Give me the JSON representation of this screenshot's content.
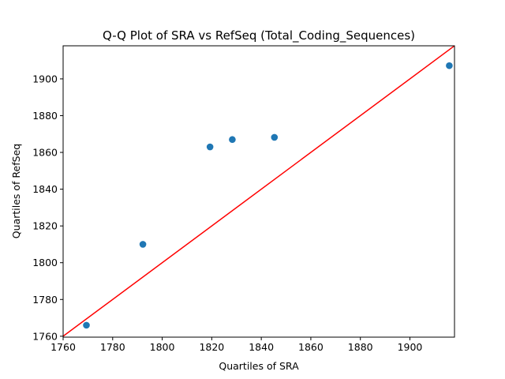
{
  "chart_data": {
    "type": "scatter",
    "title": "Q-Q Plot of SRA vs RefSeq (Total_Coding_Sequences)",
    "xlabel": "Quartiles of SRA",
    "ylabel": "Quartiles of RefSeq",
    "xlim": [
      1760,
      1918
    ],
    "ylim": [
      1759.5,
      1918
    ],
    "xticks": [
      1760,
      1780,
      1800,
      1820,
      1840,
      1860,
      1880,
      1900
    ],
    "yticks": [
      1760,
      1780,
      1800,
      1820,
      1840,
      1860,
      1880,
      1900
    ],
    "grid": false,
    "points": [
      {
        "x": 1769.4,
        "y": 1766.0
      },
      {
        "x": 1792.2,
        "y": 1810.0
      },
      {
        "x": 1819.3,
        "y": 1863.0
      },
      {
        "x": 1828.3,
        "y": 1867.0
      },
      {
        "x": 1845.3,
        "y": 1868.2
      },
      {
        "x": 1915.9,
        "y": 1907.2
      }
    ],
    "reference_line": {
      "from": [
        1759.5,
        1759.5
      ],
      "to": [
        1918,
        1918
      ]
    },
    "colors": {
      "points": "#1f77b4",
      "reference_line": "#ff0000"
    }
  }
}
